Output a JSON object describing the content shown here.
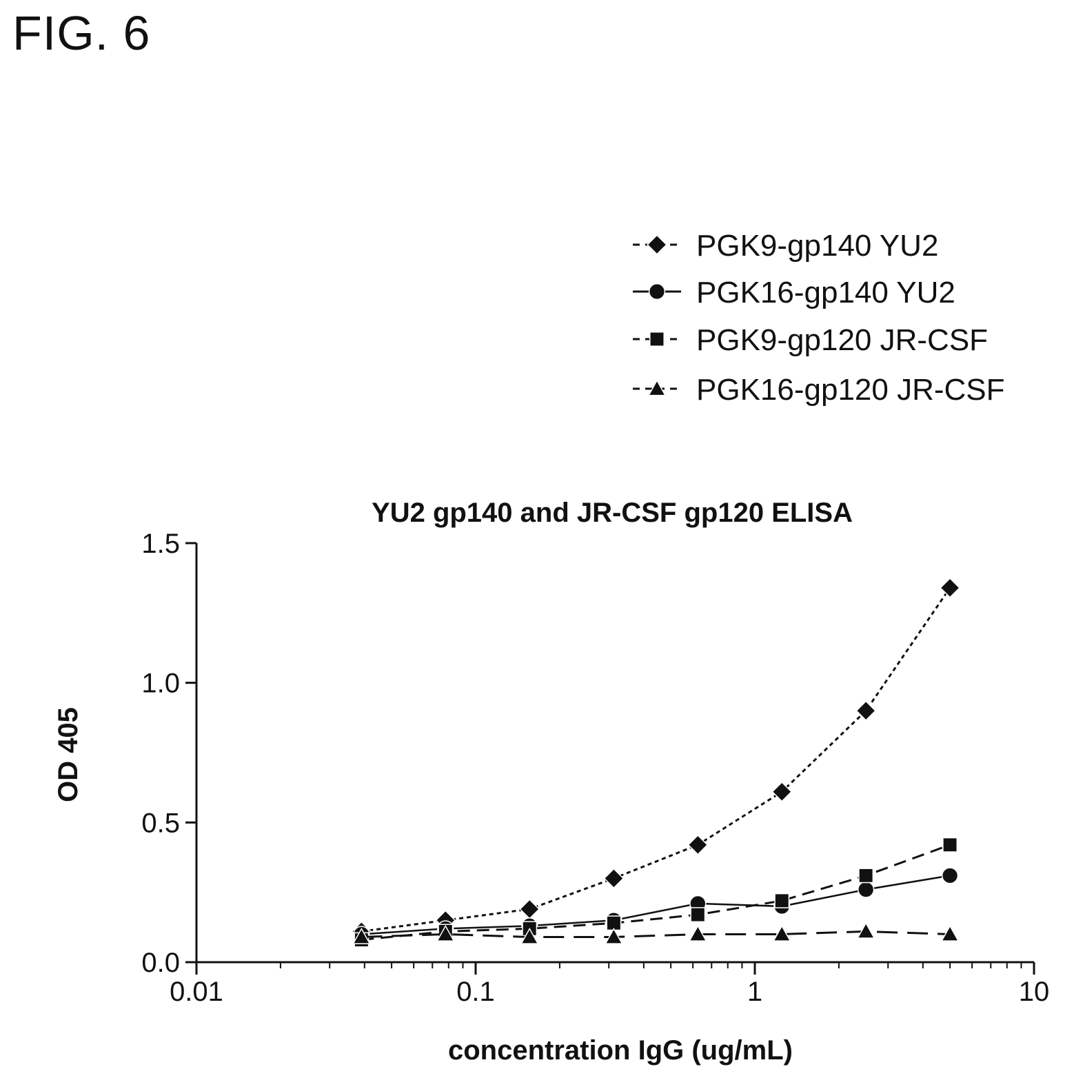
{
  "figure_label": "FIG. 6",
  "chart_data": {
    "type": "line",
    "title": "YU2 gp140 and JR-CSF gp120 ELISA",
    "xlabel": "concentration IgG (ug/mL)",
    "ylabel": "OD 405",
    "xscale": "log",
    "xlim": [
      0.01,
      10
    ],
    "ylim": [
      0,
      1.5
    ],
    "xticks": [
      0.01,
      0.1,
      1,
      10
    ],
    "xtick_labels": [
      "0.01",
      "0.1",
      "1",
      "10"
    ],
    "yticks": [
      0,
      0.5,
      1.0,
      1.5
    ],
    "ytick_labels": [
      "0.0",
      "0.5",
      "1.0",
      "1.5"
    ],
    "grid": false,
    "legend_position": "top-right",
    "x": [
      0.039,
      0.078,
      0.156,
      0.3125,
      0.625,
      1.25,
      2.5,
      5
    ],
    "series": [
      {
        "name": "PGK9-gp140 YU2",
        "marker": "diamond",
        "line_style": "dotted",
        "values": [
          0.11,
          0.15,
          0.19,
          0.3,
          0.42,
          0.61,
          0.9,
          1.34
        ]
      },
      {
        "name": "PGK16-gp140 YU2",
        "marker": "circle",
        "line_style": "solid",
        "values": [
          0.1,
          0.12,
          0.13,
          0.15,
          0.21,
          0.2,
          0.26,
          0.31
        ]
      },
      {
        "name": "PGK9-gp120 JR-CSF",
        "marker": "square",
        "line_style": "dashed",
        "values": [
          0.08,
          0.11,
          0.12,
          0.14,
          0.17,
          0.22,
          0.31,
          0.42
        ]
      },
      {
        "name": "PGK16-gp120 JR-CSF",
        "marker": "triangle",
        "line_style": "long-dashed",
        "values": [
          0.09,
          0.1,
          0.09,
          0.09,
          0.1,
          0.1,
          0.11,
          0.1
        ]
      }
    ]
  }
}
